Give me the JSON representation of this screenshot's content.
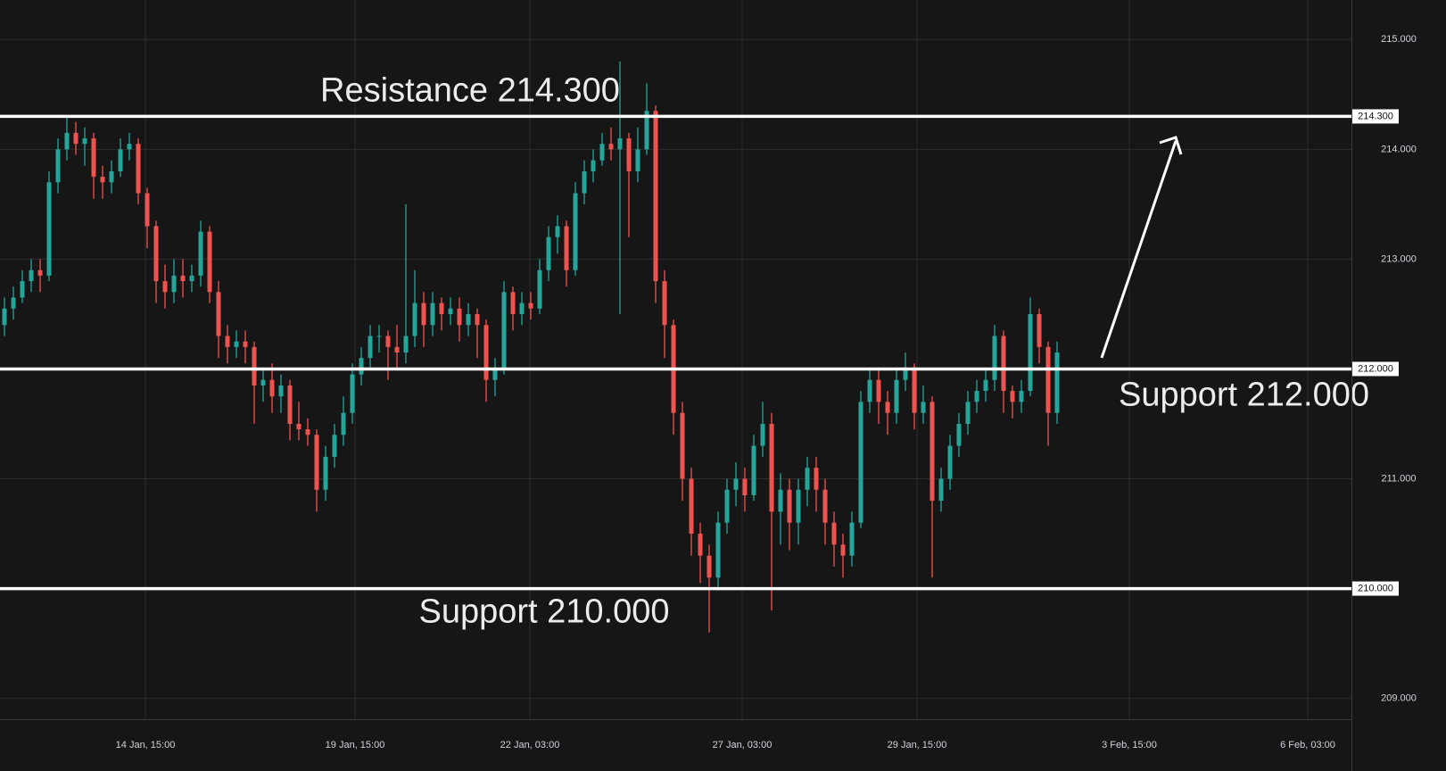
{
  "chart_data": {
    "type": "candlestick",
    "up_color": "#26a69a",
    "down_color": "#ef5350",
    "grid": true,
    "xlim": [
      0,
      151.5
    ],
    "ylim": [
      208.81,
      215.36
    ],
    "xticks": [
      {
        "value": 16.3,
        "label": "14 Jan, 15:00"
      },
      {
        "value": 39.8,
        "label": "19 Jan, 15:00"
      },
      {
        "value": 59.4,
        "label": "22 Jan, 03:00"
      },
      {
        "value": 83.2,
        "label": "27 Jan, 03:00"
      },
      {
        "value": 102.8,
        "label": "29 Jan, 15:00"
      },
      {
        "value": 126.6,
        "label": "3 Feb, 15:00"
      },
      {
        "value": 146.6,
        "label": "6 Feb, 03:00"
      }
    ],
    "yticks": [
      {
        "value": 209,
        "label": "209.000"
      },
      {
        "value": 211,
        "label": "211.000"
      },
      {
        "value": 213,
        "label": "213.000"
      },
      {
        "value": 214,
        "label": "214.000"
      },
      {
        "value": 215,
        "label": "215.000"
      }
    ],
    "levels": [
      {
        "value": 214.3,
        "label": "214.300",
        "text": "Resistance 214.300"
      },
      {
        "value": 212,
        "label": "212.000",
        "text": "Support 212.000"
      },
      {
        "value": 210,
        "label": "210.000",
        "text": "Support 210.000"
      }
    ],
    "x": [
      0.5,
      1.5,
      2.5,
      3.5,
      4.5,
      5.5,
      6.5,
      7.5,
      8.5,
      9.5,
      10.5,
      11.5,
      12.5,
      13.5,
      14.5,
      15.5,
      16.5,
      17.5,
      18.5,
      19.5,
      20.5,
      21.5,
      22.5,
      23.5,
      24.5,
      25.5,
      26.5,
      27.5,
      28.5,
      29.5,
      30.5,
      31.5,
      32.5,
      33.5,
      34.5,
      35.5,
      36.5,
      37.5,
      38.5,
      39.5,
      40.5,
      41.5,
      42.5,
      43.5,
      44.5,
      45.5,
      46.5,
      47.5,
      48.5,
      49.5,
      50.5,
      51.5,
      52.5,
      53.5,
      54.5,
      55.5,
      56.5,
      57.5,
      58.5,
      59.5,
      60.5,
      61.5,
      62.5,
      63.5,
      64.5,
      65.5,
      66.5,
      67.5,
      68.5,
      69.5,
      70.5,
      71.5,
      72.5,
      73.5,
      74.5,
      75.5,
      76.5,
      77.5,
      78.5,
      79.5,
      80.5,
      81.5,
      82.5,
      83.5,
      84.5,
      85.5,
      86.5,
      87.5,
      88.5,
      89.5,
      90.5,
      91.5,
      92.5,
      93.5,
      94.5,
      95.5,
      96.5,
      97.5,
      98.5,
      99.5,
      100.5,
      101.5,
      102.5,
      103.5,
      104.5,
      105.5,
      106.5,
      107.5,
      108.5,
      109.5,
      110.5,
      111.5,
      112.5,
      113.5,
      114.5,
      115.5,
      116.5,
      117.5,
      118.5
    ],
    "open": [
      212.4,
      212.55,
      212.65,
      212.8,
      212.9,
      212.85,
      213.7,
      214.0,
      214.15,
      214.05,
      214.1,
      213.75,
      213.7,
      213.8,
      214.0,
      214.05,
      213.6,
      213.3,
      212.8,
      212.7,
      212.85,
      212.8,
      212.85,
      213.25,
      212.7,
      212.3,
      212.2,
      212.25,
      212.2,
      211.85,
      211.9,
      211.75,
      211.85,
      211.5,
      211.45,
      211.4,
      210.9,
      211.2,
      211.4,
      211.6,
      211.95,
      212.1,
      212.3,
      212.3,
      212.2,
      212.15,
      212.3,
      212.6,
      212.4,
      212.6,
      212.5,
      212.55,
      212.4,
      212.5,
      212.4,
      211.9,
      212.0,
      212.7,
      212.5,
      212.6,
      212.55,
      212.9,
      213.2,
      213.3,
      212.9,
      213.6,
      213.8,
      213.9,
      214.05,
      214.0,
      214.1,
      213.8,
      214.0,
      214.35,
      212.8,
      212.4,
      211.6,
      211.0,
      210.5,
      210.3,
      210.1,
      210.6,
      210.9,
      211.0,
      210.85,
      211.3,
      211.5,
      210.7,
      210.9,
      210.6,
      210.9,
      211.1,
      210.9,
      210.6,
      210.4,
      210.3,
      210.6,
      211.7,
      211.9,
      211.7,
      211.6,
      211.9,
      212.0,
      211.6,
      211.7,
      210.8,
      211.0,
      211.3,
      211.5,
      211.7,
      211.8,
      211.9,
      212.3,
      211.8,
      211.7,
      211.8,
      212.5,
      212.2,
      211.6
    ],
    "high": [
      212.65,
      212.75,
      212.9,
      213.0,
      213.0,
      213.8,
      214.1,
      214.3,
      214.25,
      214.2,
      214.15,
      213.85,
      213.9,
      214.1,
      214.15,
      214.1,
      213.65,
      213.35,
      212.95,
      213.0,
      213.0,
      212.95,
      213.35,
      213.3,
      212.8,
      212.4,
      212.35,
      212.35,
      212.25,
      212.0,
      212.05,
      211.95,
      211.9,
      211.7,
      211.55,
      211.45,
      211.3,
      211.5,
      211.75,
      212.05,
      212.2,
      212.4,
      212.4,
      212.35,
      212.4,
      213.5,
      212.9,
      212.7,
      212.7,
      212.65,
      212.65,
      212.65,
      212.6,
      212.55,
      212.45,
      212.1,
      212.8,
      212.75,
      212.7,
      212.7,
      213.0,
      213.3,
      213.4,
      213.35,
      213.7,
      213.9,
      214.0,
      214.15,
      214.2,
      214.8,
      214.15,
      214.2,
      214.6,
      214.4,
      212.9,
      212.45,
      211.7,
      211.1,
      210.6,
      210.4,
      210.7,
      211.0,
      211.15,
      211.1,
      211.4,
      211.7,
      211.6,
      211.05,
      211.0,
      211.0,
      211.2,
      211.2,
      211.0,
      210.7,
      210.5,
      210.7,
      211.8,
      212.0,
      212.0,
      211.8,
      212.0,
      212.15,
      212.05,
      211.85,
      211.75,
      211.1,
      211.4,
      211.6,
      211.8,
      211.9,
      212.0,
      212.4,
      212.35,
      211.85,
      211.9,
      212.65,
      212.55,
      212.25,
      212.25
    ],
    "low": [
      212.3,
      212.45,
      212.6,
      212.7,
      212.7,
      212.8,
      213.6,
      213.9,
      213.95,
      213.85,
      213.55,
      213.55,
      213.6,
      213.75,
      213.9,
      213.5,
      213.1,
      212.6,
      212.55,
      212.6,
      212.65,
      212.7,
      212.75,
      212.6,
      212.1,
      212.05,
      212.1,
      212.05,
      211.5,
      211.7,
      211.6,
      211.6,
      211.35,
      211.35,
      211.3,
      210.7,
      210.8,
      211.1,
      211.3,
      211.5,
      211.85,
      212.0,
      212.15,
      211.9,
      212.0,
      212.05,
      212.2,
      212.2,
      212.3,
      212.35,
      212.4,
      212.25,
      212.3,
      212.1,
      211.7,
      211.75,
      211.95,
      212.35,
      212.4,
      212.45,
      212.5,
      212.8,
      213.05,
      212.75,
      212.85,
      213.5,
      213.7,
      213.85,
      213.9,
      212.5,
      213.2,
      213.7,
      213.95,
      212.6,
      212.1,
      211.4,
      210.8,
      210.3,
      210.05,
      209.6,
      210.0,
      210.5,
      210.75,
      210.7,
      210.8,
      211.2,
      209.8,
      210.4,
      210.35,
      210.4,
      210.75,
      210.7,
      210.4,
      210.2,
      210.1,
      210.2,
      210.55,
      211.6,
      211.5,
      211.4,
      211.5,
      211.8,
      211.45,
      211.5,
      210.1,
      210.7,
      210.9,
      211.2,
      211.4,
      211.6,
      211.7,
      211.8,
      211.6,
      211.55,
      211.6,
      211.75,
      212.05,
      211.3,
      211.5
    ],
    "close": [
      212.55,
      212.65,
      212.8,
      212.9,
      212.85,
      213.7,
      214.0,
      214.15,
      214.05,
      214.1,
      213.75,
      213.7,
      213.8,
      214.0,
      214.05,
      213.6,
      213.3,
      212.8,
      212.7,
      212.85,
      212.8,
      212.85,
      213.25,
      212.7,
      212.3,
      212.2,
      212.25,
      212.2,
      211.85,
      211.9,
      211.75,
      211.85,
      211.5,
      211.45,
      211.4,
      210.9,
      211.2,
      211.4,
      211.6,
      211.95,
      212.1,
      212.3,
      212.3,
      212.2,
      212.15,
      212.3,
      212.6,
      212.4,
      212.6,
      212.5,
      212.55,
      212.4,
      212.5,
      212.4,
      211.9,
      212.0,
      212.7,
      212.5,
      212.6,
      212.55,
      212.9,
      213.2,
      213.3,
      212.9,
      213.6,
      213.8,
      213.9,
      214.05,
      214.0,
      214.1,
      213.8,
      214.0,
      214.35,
      212.8,
      212.4,
      211.6,
      211.0,
      210.5,
      210.3,
      210.1,
      210.6,
      210.9,
      211.0,
      210.85,
      211.3,
      211.5,
      210.7,
      210.9,
      210.6,
      210.9,
      211.1,
      210.9,
      210.6,
      210.4,
      210.3,
      210.6,
      211.7,
      211.9,
      211.7,
      211.6,
      211.9,
      212.0,
      211.6,
      211.7,
      210.8,
      211.0,
      211.3,
      211.5,
      211.7,
      211.8,
      211.9,
      212.3,
      211.8,
      211.7,
      211.8,
      212.5,
      212.2,
      211.6,
      212.15
    ]
  }
}
